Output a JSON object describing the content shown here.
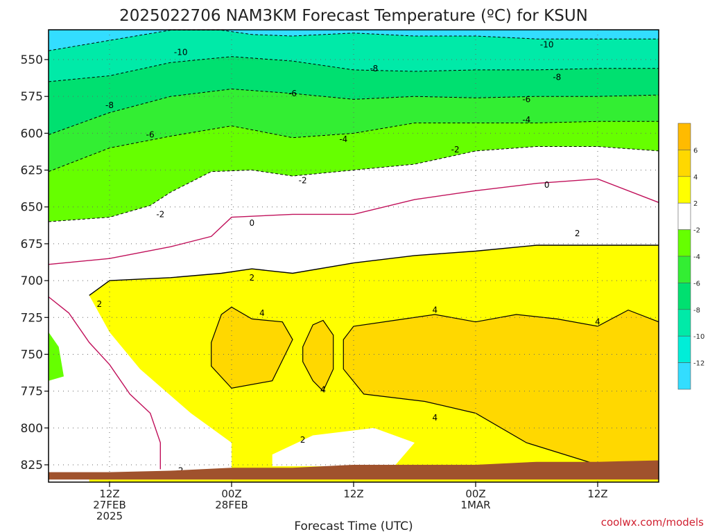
{
  "chart_data": {
    "type": "contour",
    "title": "2025022706 NAM3KM Forecast Temperature (ºC) for KSUN",
    "xlabel": "Forecast Time (UTC)",
    "ylabel": "",
    "y_axis": {
      "unit": "hPa",
      "inverted": true,
      "ylim": [
        835,
        530
      ],
      "ticks": [
        550,
        575,
        600,
        625,
        650,
        675,
        700,
        725,
        750,
        775,
        800,
        825
      ]
    },
    "x_axis": {
      "unit": "forecast hour",
      "xlim": [
        0,
        60
      ],
      "ticks": [
        {
          "hour": 6,
          "lines": [
            "12Z",
            "27FEB",
            "2025"
          ]
        },
        {
          "hour": 18,
          "lines": [
            "00Z",
            "28FEB"
          ]
        },
        {
          "hour": 30,
          "lines": [
            "12Z"
          ]
        },
        {
          "hour": 42,
          "lines": [
            "00Z",
            "1MAR"
          ]
        },
        {
          "hour": 54,
          "lines": [
            "12Z"
          ]
        }
      ]
    },
    "grid": true,
    "colorbar": {
      "position": "right",
      "labels": [
        "6",
        "4",
        "2",
        "-2",
        "-4",
        "-6",
        "-8",
        "-10",
        "-12"
      ],
      "bands": [
        {
          "color": "#ffbb00",
          "lo": 6,
          "hi": 8
        },
        {
          "color": "#ffd800",
          "lo": 4,
          "hi": 6
        },
        {
          "color": "#ffff00",
          "lo": 2,
          "hi": 4
        },
        {
          "color": "#ffffff",
          "lo": -2,
          "hi": 2
        },
        {
          "color": "#66ff00",
          "lo": -4,
          "hi": -2
        },
        {
          "color": "#33ee33",
          "lo": -6,
          "hi": -4
        },
        {
          "color": "#00e070",
          "lo": -8,
          "hi": -6
        },
        {
          "color": "#00eaa8",
          "lo": -10,
          "hi": -8
        },
        {
          "color": "#00eed8",
          "lo": -12,
          "hi": -10
        },
        {
          "color": "#33ddff",
          "lo": -14,
          "hi": -12
        }
      ]
    },
    "terrain_color": "#a0522d",
    "contours": [
      {
        "level": -10,
        "style": "dashed",
        "color": "#000000",
        "points": [
          [
            0,
            544
          ],
          [
            6,
            537
          ],
          [
            12,
            530
          ],
          [
            17,
            530
          ],
          [
            20,
            533
          ],
          [
            24,
            534
          ],
          [
            30,
            532
          ],
          [
            36,
            534
          ],
          [
            42,
            534
          ],
          [
            48,
            536
          ],
          [
            54,
            536
          ],
          [
            60,
            536
          ]
        ],
        "labels": [
          [
            13,
            545
          ],
          [
            49,
            540
          ]
        ]
      },
      {
        "level": -8,
        "style": "dashed",
        "color": "#000000",
        "points": [
          [
            0,
            565
          ],
          [
            6,
            561
          ],
          [
            12,
            552
          ],
          [
            18,
            548
          ],
          [
            24,
            551
          ],
          [
            30,
            557
          ],
          [
            36,
            558
          ],
          [
            42,
            557
          ],
          [
            48,
            557
          ],
          [
            54,
            556
          ],
          [
            60,
            556
          ]
        ],
        "labels": [
          [
            6,
            581
          ],
          [
            32,
            556
          ],
          [
            50,
            562
          ]
        ]
      },
      {
        "level": -6,
        "style": "dashed",
        "color": "#000000",
        "points": [
          [
            0,
            601
          ],
          [
            6,
            586
          ],
          [
            12,
            575
          ],
          [
            18,
            570
          ],
          [
            24,
            573
          ],
          [
            30,
            577
          ],
          [
            36,
            575
          ],
          [
            42,
            576
          ],
          [
            48,
            575
          ],
          [
            54,
            575
          ],
          [
            60,
            574
          ]
        ],
        "labels": [
          [
            10,
            601
          ],
          [
            24,
            573
          ],
          [
            47,
            577
          ]
        ]
      },
      {
        "level": -4,
        "style": "dashed",
        "color": "#000000",
        "points": [
          [
            0,
            626
          ],
          [
            6,
            610
          ],
          [
            12,
            602
          ],
          [
            18,
            595
          ],
          [
            24,
            603
          ],
          [
            30,
            600
          ],
          [
            36,
            593
          ],
          [
            42,
            593
          ],
          [
            48,
            593
          ],
          [
            54,
            592
          ],
          [
            60,
            592
          ]
        ],
        "labels": [
          [
            29,
            604
          ],
          [
            47,
            591
          ]
        ]
      },
      {
        "level": -2,
        "style": "dashed",
        "color": "#000000",
        "points": [
          [
            0,
            660
          ],
          [
            6,
            657
          ],
          [
            10,
            649
          ],
          [
            12,
            640
          ],
          [
            16,
            626
          ],
          [
            20,
            625
          ],
          [
            24,
            629
          ],
          [
            30,
            625
          ],
          [
            36,
            621
          ],
          [
            42,
            612
          ],
          [
            48,
            609
          ],
          [
            54,
            609
          ],
          [
            60,
            612
          ]
        ],
        "labels": [
          [
            11,
            655
          ],
          [
            25,
            632
          ],
          [
            40,
            611
          ]
        ]
      },
      {
        "level": 0,
        "style": "solid",
        "color": "#c0105a",
        "points": [
          [
            0,
            689
          ],
          [
            6,
            685
          ],
          [
            12,
            677
          ],
          [
            16,
            670
          ],
          [
            18,
            657
          ],
          [
            24,
            655
          ],
          [
            30,
            655
          ],
          [
            36,
            645
          ],
          [
            42,
            639
          ],
          [
            48,
            634
          ],
          [
            54,
            631
          ],
          [
            60,
            647
          ]
        ],
        "labels": [
          [
            20,
            661
          ],
          [
            49,
            635
          ]
        ]
      },
      {
        "level": 2,
        "style": "solid",
        "color": "#000000",
        "points": [
          [
            4,
            710
          ],
          [
            6,
            700
          ],
          [
            12,
            698
          ],
          [
            17,
            695
          ],
          [
            20,
            692
          ],
          [
            24,
            695
          ],
          [
            30,
            688
          ],
          [
            36,
            683
          ],
          [
            42,
            680
          ],
          [
            48,
            676
          ],
          [
            54,
            676
          ],
          [
            60,
            676
          ]
        ],
        "labels": [
          [
            5,
            716
          ],
          [
            20,
            698
          ],
          [
            52,
            668
          ],
          [
            25,
            808
          ],
          [
            13,
            829
          ]
        ]
      },
      {
        "level": 4,
        "style": "solid",
        "color": "#000000",
        "points": [
          [
            16,
            742
          ],
          [
            18,
            723
          ],
          [
            20,
            730
          ],
          [
            24,
            735
          ],
          [
            26,
            745
          ],
          [
            22,
            770
          ],
          [
            18,
            773
          ],
          [
            16,
            760
          ]
        ],
        "labels": [
          [
            21,
            722
          ],
          [
            27,
            774
          ],
          [
            38,
            793
          ],
          [
            54,
            728
          ],
          [
            38,
            720
          ]
        ]
      }
    ]
  },
  "footer": {
    "watermark": "coolwx.com/models"
  }
}
